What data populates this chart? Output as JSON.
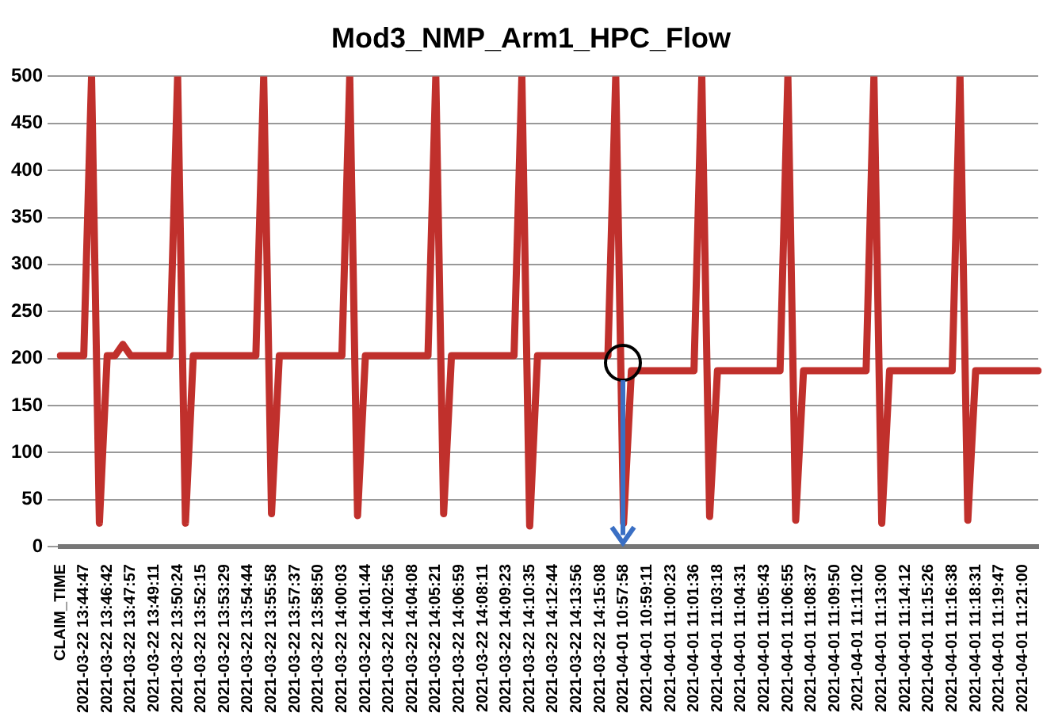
{
  "chart_data": {
    "type": "line",
    "title": "Mod3_NMP_Arm1_HPC_Flow",
    "categories": [
      "CLAIM_TIME",
      null,
      null,
      "2021-03-22 13:44:47",
      null,
      null,
      "2021-03-22 13:46:42",
      null,
      null,
      "2021-03-22 13:47:57",
      null,
      null,
      "2021-03-22 13:49:11",
      null,
      null,
      "2021-03-22 13:50:24",
      null,
      null,
      "2021-03-22 13:52:15",
      null,
      null,
      "2021-03-22 13:53:29",
      null,
      null,
      "2021-03-22 13:54:44",
      null,
      null,
      "2021-03-22 13:55:58",
      null,
      null,
      "2021-03-22 13:57:37",
      null,
      null,
      "2021-03-22 13:58:50",
      null,
      null,
      "2021-03-22 14:00:03",
      null,
      null,
      "2021-03-22 14:01:44",
      null,
      null,
      "2021-03-22 14:02:56",
      null,
      null,
      "2021-03-22 14:04:08",
      null,
      null,
      "2021-03-22 14:05:21",
      null,
      null,
      "2021-03-22 14:06:59",
      null,
      null,
      "2021-03-22 14:08:11",
      null,
      null,
      "2021-03-22 14:09:23",
      null,
      null,
      "2021-03-22 14:10:35",
      null,
      null,
      "2021-03-22 14:12:44",
      null,
      null,
      "2021-03-22 14:13:56",
      null,
      null,
      "2021-03-22 14:15:08",
      null,
      null,
      "2021-04-01 10:57:58",
      null,
      null,
      "2021-04-01 10:59:11",
      null,
      null,
      "2021-04-01 11:00:23",
      null,
      null,
      "2021-04-01 11:01:36",
      null,
      null,
      "2021-04-01 11:03:18",
      null,
      null,
      "2021-04-01 11:04:31",
      null,
      null,
      "2021-04-01 11:05:43",
      null,
      null,
      "2021-04-01 11:06:55",
      null,
      null,
      "2021-04-01 11:08:37",
      null,
      null,
      "2021-04-01 11:09:50",
      null,
      null,
      "2021-04-01 11:11:02",
      null,
      null,
      "2021-04-01 11:13:00",
      null,
      null,
      "2021-04-01 11:14:12",
      null,
      null,
      "2021-04-01 11:15:26",
      null,
      null,
      "2021-04-01 11:16:38",
      null,
      null,
      "2021-04-01 11:18:31",
      null,
      null,
      "2021-04-01 11:19:47",
      null,
      null,
      "2021-04-01 11:21:00",
      null,
      null
    ],
    "series": [
      {
        "color": "#c0302c",
        "values": [
          203,
          203,
          203,
          203,
          500,
          25,
          203,
          203,
          215,
          203,
          203,
          203,
          203,
          203,
          203,
          500,
          25,
          203,
          203,
          203,
          203,
          203,
          203,
          203,
          203,
          203,
          500,
          35,
          203,
          203,
          203,
          203,
          203,
          203,
          203,
          203,
          203,
          500,
          33,
          203,
          203,
          203,
          203,
          203,
          203,
          203,
          203,
          203,
          500,
          35,
          203,
          203,
          203,
          203,
          203,
          203,
          203,
          203,
          203,
          500,
          22,
          203,
          203,
          203,
          203,
          203,
          203,
          203,
          203,
          203,
          203,
          500,
          25,
          187,
          187,
          187,
          187,
          187,
          187,
          187,
          187,
          187,
          500,
          32,
          187,
          187,
          187,
          187,
          187,
          187,
          187,
          187,
          187,
          500,
          28,
          187,
          187,
          187,
          187,
          187,
          187,
          187,
          187,
          187,
          500,
          25,
          187,
          187,
          187,
          187,
          187,
          187,
          187,
          187,
          187,
          500,
          28,
          187,
          187,
          187,
          187,
          187,
          187,
          187,
          187,
          187
        ]
      }
    ],
    "ylim": [
      0,
      500
    ],
    "yticks": [
      0,
      50,
      100,
      150,
      200,
      250,
      300,
      350,
      400,
      450,
      500
    ],
    "grid": "y",
    "legend": false,
    "marker": "none",
    "line_style": "solid"
  }
}
